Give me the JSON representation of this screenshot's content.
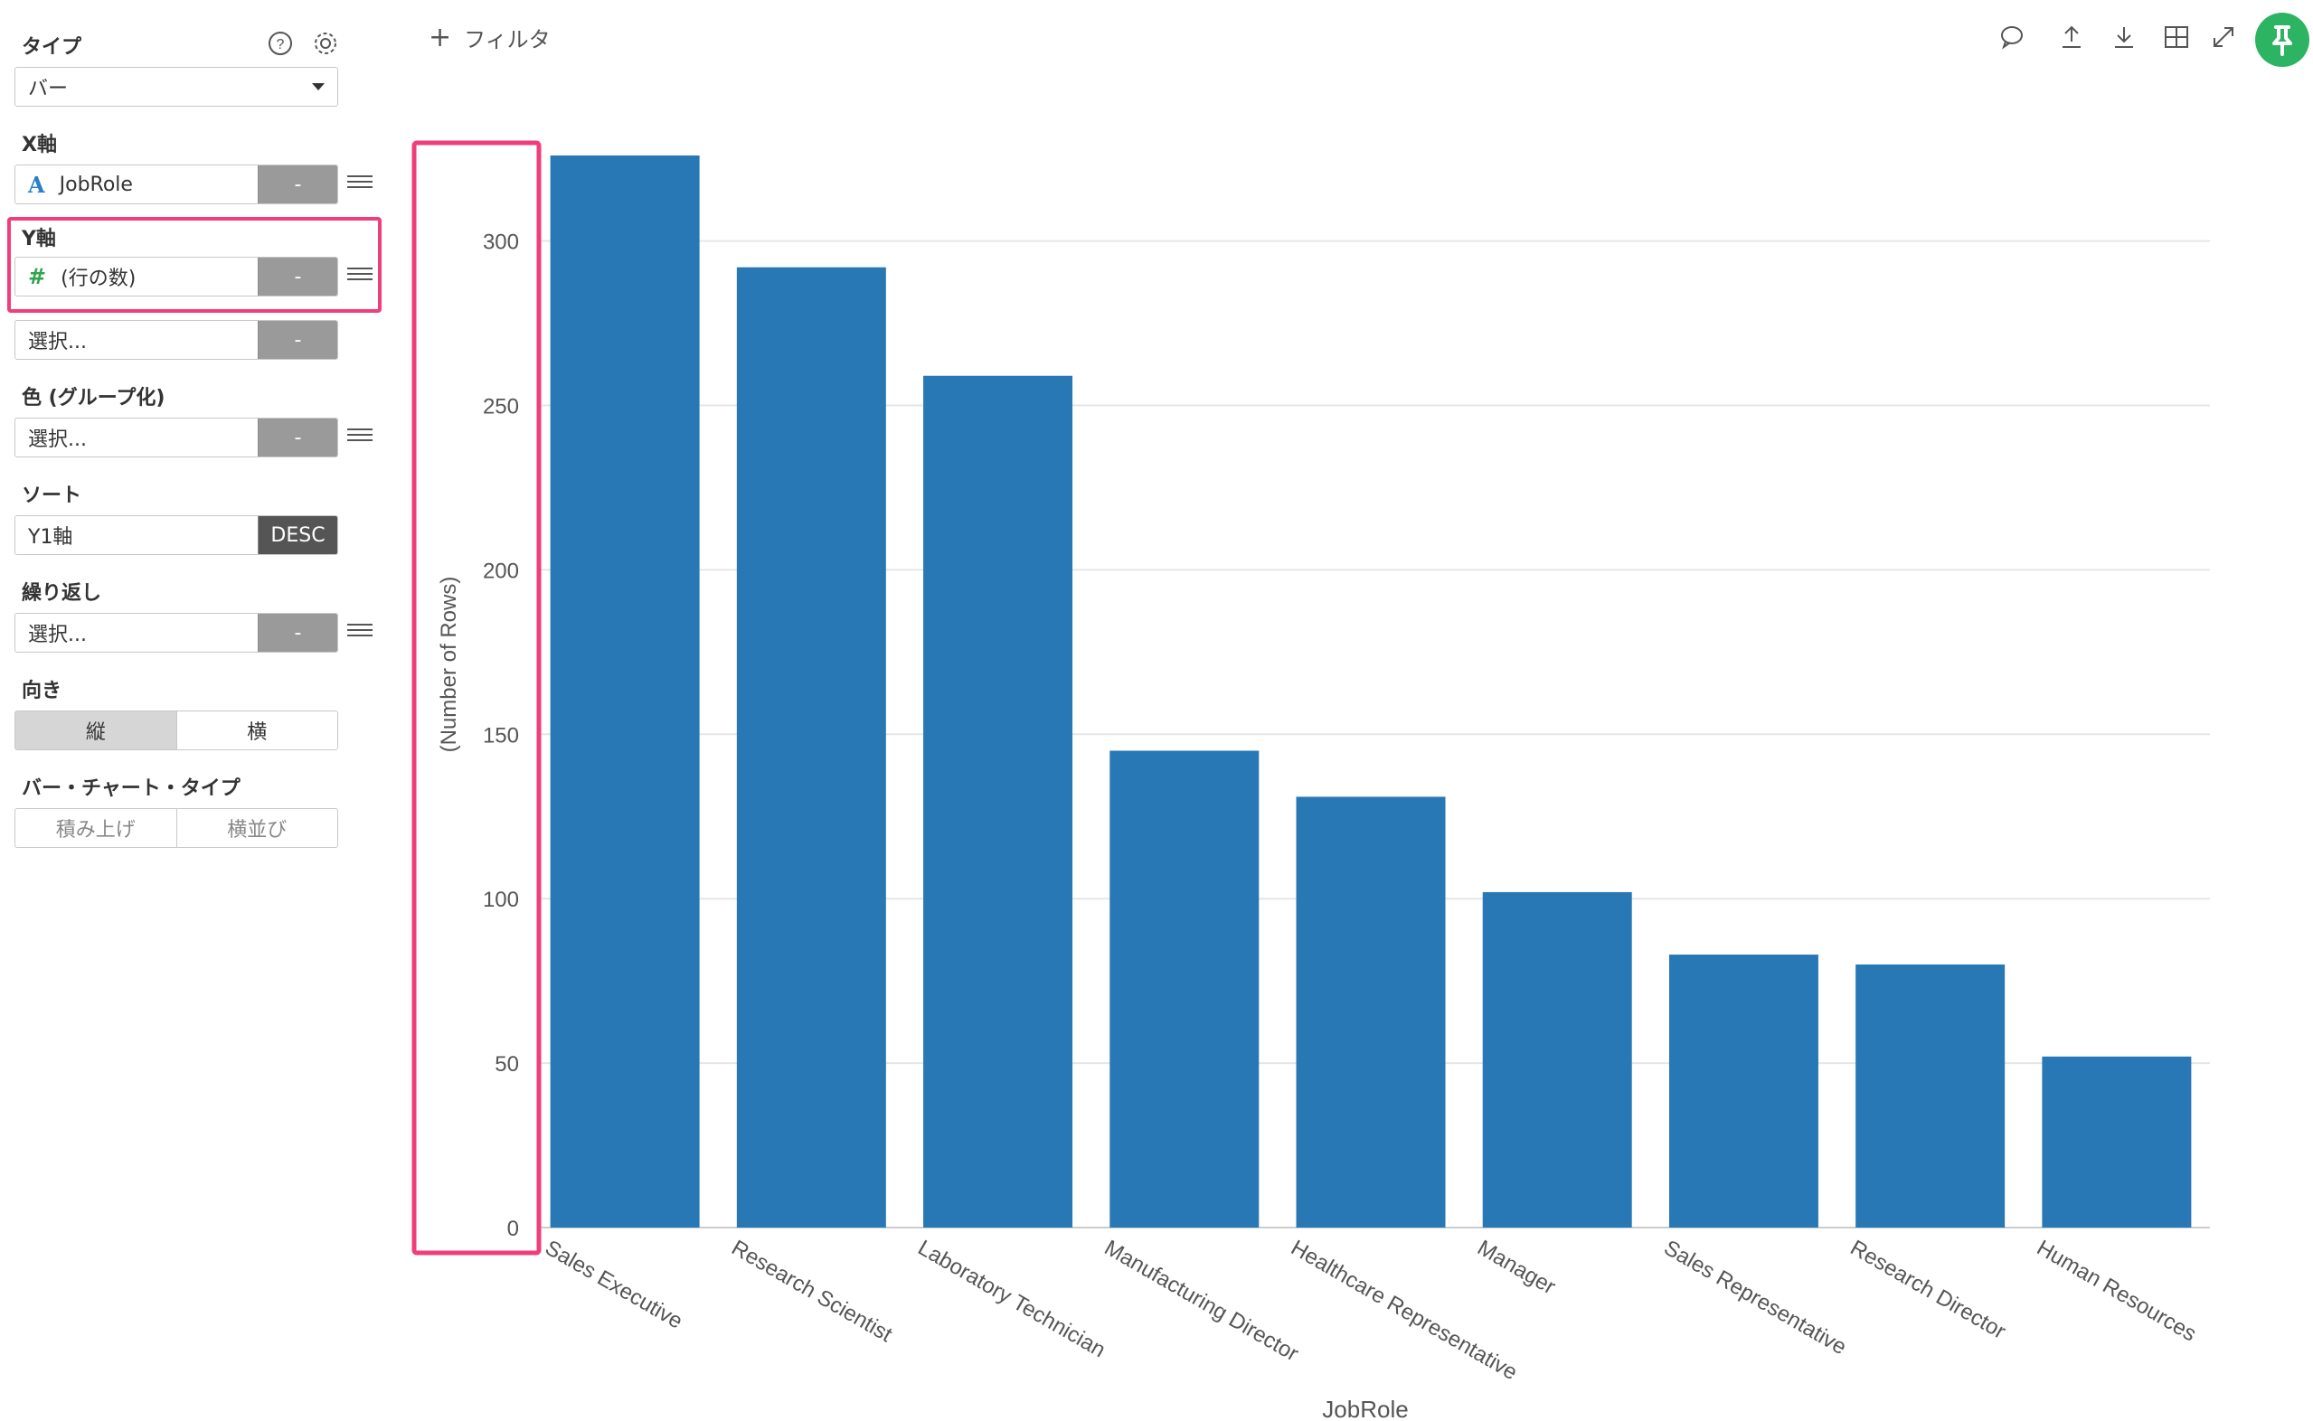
{
  "sidebar": {
    "type_label": "タイプ",
    "type_value": "バー",
    "x_axis_label": "X軸",
    "x_axis_field": "JobRole",
    "x_axis_btn": "-",
    "y_axis_label": "Y軸",
    "y_axis_field": "(行の数)",
    "y_axis_btn": "-",
    "y2_placeholder": "選択...",
    "y2_btn": "-",
    "color_label": "色 (グループ化)",
    "color_placeholder": "選択...",
    "color_btn": "-",
    "sort_label": "ソート",
    "sort_value": "Y1軸",
    "sort_order": "DESC",
    "repeat_label": "繰り返し",
    "repeat_placeholder": "選択...",
    "repeat_btn": "-",
    "orientation_label": "向き",
    "orientation_vertical": "縦",
    "orientation_horizontal": "横",
    "bar_type_label": "バー・チャート・タイプ",
    "bar_type_stacked": "積み上げ",
    "bar_type_side": "横並び"
  },
  "toolbar": {
    "filter_label": "フィルタ"
  },
  "icons": {
    "help": "help-icon",
    "settings": "gear-icon",
    "comment": "comment-icon",
    "upload": "upload-icon",
    "download": "download-icon",
    "table": "table-icon",
    "expand": "expand-icon",
    "pin": "pin-icon"
  },
  "colors": {
    "bar": "#2878b5",
    "highlight": "#ef3e7b",
    "pin": "#2db463"
  },
  "chart_data": {
    "type": "bar",
    "categories": [
      "Sales Executive",
      "Research Scientist",
      "Laboratory Technician",
      "Manufacturing Director",
      "Healthcare Representative",
      "Manager",
      "Sales Representative",
      "Research Director",
      "Human Resources"
    ],
    "values": [
      326,
      292,
      259,
      145,
      131,
      102,
      83,
      80,
      52
    ],
    "xlabel": "JobRole",
    "ylabel": "(Number of Rows)",
    "yticks": [
      0,
      50,
      100,
      150,
      200,
      250,
      300
    ],
    "ylim": [
      0,
      326
    ],
    "grid": true
  }
}
